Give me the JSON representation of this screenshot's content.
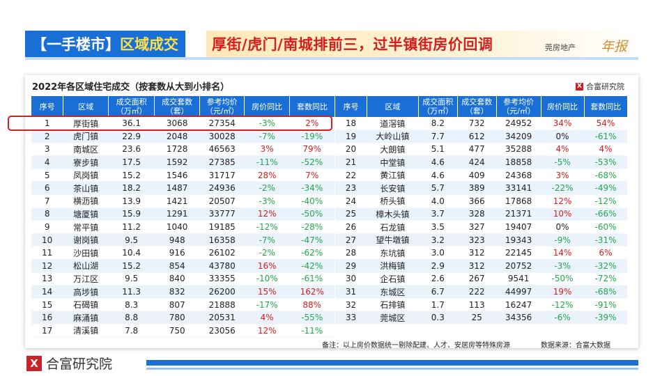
{
  "header": {
    "tag_prefix": "【一手楼市】",
    "tag_highlight": "区域成交",
    "title": "厚街/虎门/南城排前三，过半镇街房价回调",
    "brand": "莞房地产",
    "brand_script": "年报"
  },
  "card": {
    "title": "2022年各区域住宅成交（按套数从大到小排名）",
    "logo": "合富研究院",
    "logo_mark": "X"
  },
  "columns": {
    "rank": "序号",
    "region": "区域",
    "area": "成交面积（万㎡）",
    "units": "成交套数（套）",
    "price": "参考均价（元/㎡）",
    "price_yoy": "房价同比",
    "units_yoy": "套数同比"
  },
  "left_rows": [
    [
      "1",
      "厚街镇",
      "36.1",
      "3068",
      "27354",
      "-3%",
      "2%"
    ],
    [
      "2",
      "虎门镇",
      "22.9",
      "2048",
      "30028",
      "-7%",
      "-19%"
    ],
    [
      "3",
      "南城区",
      "23.6",
      "1728",
      "46563",
      "3%",
      "79%"
    ],
    [
      "4",
      "寮步镇",
      "17.5",
      "1592",
      "27385",
      "-11%",
      "-52%"
    ],
    [
      "5",
      "凤岗镇",
      "15.2",
      "1546",
      "31717",
      "28%",
      "7%"
    ],
    [
      "6",
      "茶山镇",
      "18.2",
      "1487",
      "24936",
      "-2%",
      "-34%"
    ],
    [
      "7",
      "横沥镇",
      "13.9",
      "1421",
      "20507",
      "-3%",
      "-40%"
    ],
    [
      "8",
      "塘厦镇",
      "15.9",
      "1291",
      "33777",
      "12%",
      "-50%"
    ],
    [
      "9",
      "常平镇",
      "11.2",
      "1040",
      "19185",
      "-12%",
      "-28%"
    ],
    [
      "10",
      "谢岗镇",
      "9.5",
      "948",
      "16358",
      "-7%",
      "-47%"
    ],
    [
      "11",
      "沙田镇",
      "10.4",
      "916",
      "26102",
      "-2%",
      "-62%"
    ],
    [
      "12",
      "松山湖",
      "15.2",
      "854",
      "43780",
      "16%",
      "-42%"
    ],
    [
      "13",
      "万江区",
      "9.5",
      "840",
      "33355",
      "-10%",
      "-61%"
    ],
    [
      "14",
      "高埗镇",
      "11.3",
      "832",
      "26200",
      "15%",
      "162%"
    ],
    [
      "15",
      "石碣镇",
      "8.3",
      "807",
      "21888",
      "-17%",
      "88%"
    ],
    [
      "16",
      "麻涌镇",
      "8.8",
      "780",
      "20531",
      "4%",
      "-55%"
    ],
    [
      "17",
      "清溪镇",
      "7.8",
      "750",
      "23056",
      "12%",
      "-11%"
    ]
  ],
  "right_rows": [
    [
      "18",
      "道滘镇",
      "8.2",
      "732",
      "24952",
      "34%",
      "54%"
    ],
    [
      "19",
      "大岭山镇",
      "7.7",
      "612",
      "34209",
      "0%",
      "-61%"
    ],
    [
      "20",
      "大朗镇",
      "5.1",
      "477",
      "35288",
      "4%",
      "4%"
    ],
    [
      "21",
      "中堂镇",
      "4.6",
      "424",
      "18858",
      "-5%",
      "-53%"
    ],
    [
      "22",
      "黄江镇",
      "4.6",
      "409",
      "24368",
      "3%",
      "-68%"
    ],
    [
      "23",
      "长安镇",
      "5.7",
      "389",
      "33141",
      "-22%",
      "-49%"
    ],
    [
      "24",
      "桥头镇",
      "4.0",
      "366",
      "17868",
      "12%",
      "-12%"
    ],
    [
      "25",
      "樟木头镇",
      "3.7",
      "328",
      "21371",
      "10%",
      "-66%"
    ],
    [
      "26",
      "石龙镇",
      "3.5",
      "327",
      "19407",
      "0%",
      "-60%"
    ],
    [
      "27",
      "望牛墩镇",
      "3.2",
      "323",
      "19343",
      "-9%",
      "-31%"
    ],
    [
      "28",
      "东坑镇",
      "3.0",
      "312",
      "22145",
      "14%",
      "6%"
    ],
    [
      "29",
      "洪梅镇",
      "2.9",
      "312",
      "20752",
      "-3%",
      "-32%"
    ],
    [
      "30",
      "企石镇",
      "2.6",
      "267",
      "9541",
      "-50%",
      "-72%"
    ],
    [
      "31",
      "东城区",
      "6.7",
      "222",
      "44997",
      "19%",
      "-68%"
    ],
    [
      "32",
      "石排镇",
      "1.7",
      "113",
      "16247",
      "-12%",
      "-91%"
    ],
    [
      "33",
      "莞城区",
      "0.3",
      "25",
      "34356",
      "-6%",
      "-39%"
    ]
  ],
  "note": "备注：以上房价数据统一剔除配建、人才、安居房等特殊房源",
  "source": "数据来源：合富大数据",
  "footer": {
    "logo": "合富研究院",
    "logo_mark": "X"
  },
  "colors": {
    "accent": "#1a6fd6",
    "up": "#d91c1c",
    "down": "#22a84a",
    "title_red": "#d3201e"
  }
}
